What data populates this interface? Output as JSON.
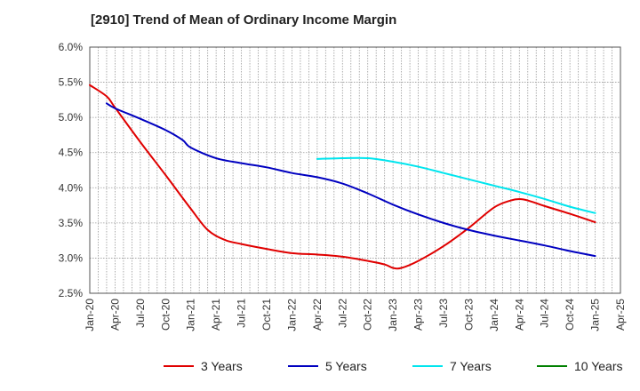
{
  "chart_data": {
    "type": "line",
    "title": "[2910]  Trend of Mean of Ordinary Income Margin",
    "x_tick_labels": [
      "Jan-20",
      "Apr-20",
      "Jul-20",
      "Oct-20",
      "Jan-21",
      "Apr-21",
      "Jul-21",
      "Oct-21",
      "Jan-22",
      "Apr-22",
      "Jul-22",
      "Oct-22",
      "Jan-23",
      "Apr-23",
      "Jul-23",
      "Oct-23",
      "Jan-24",
      "Apr-24",
      "Jul-24",
      "Oct-24",
      "Jan-25",
      "Apr-25"
    ],
    "y_tick_labels": [
      "6.0%",
      "5.5%",
      "5.0%",
      "4.5%",
      "4.0%",
      "3.5%",
      "3.0%",
      "2.5%"
    ],
    "ylim": [
      2.5,
      6.0
    ],
    "grid": true,
    "legend_position": "bottom",
    "series": [
      {
        "name": "3 Years",
        "color": "#e00000",
        "x": [
          "Jan-20",
          "Mar-20",
          "Apr-20",
          "Jul-20",
          "Oct-20",
          "Jan-21",
          "Mar-21",
          "May-21",
          "Jul-21",
          "Oct-21",
          "Jan-22",
          "Apr-22",
          "Jul-22",
          "Oct-22",
          "Dec-22",
          "Jan-23",
          "Feb-23",
          "Apr-23",
          "Jul-23",
          "Oct-23",
          "Jan-24",
          "Mar-24",
          "Apr-24",
          "May-24",
          "Jul-24",
          "Oct-24",
          "Jan-25"
        ],
        "values": [
          5.46,
          5.3,
          5.14,
          4.65,
          4.18,
          3.7,
          3.4,
          3.26,
          3.2,
          3.13,
          3.07,
          3.05,
          3.02,
          2.96,
          2.91,
          2.86,
          2.86,
          2.96,
          3.17,
          3.43,
          3.72,
          3.82,
          3.84,
          3.82,
          3.74,
          3.63,
          3.51
        ]
      },
      {
        "name": "5 Years",
        "color": "#0000c0",
        "x": [
          "Mar-20",
          "Apr-20",
          "Jul-20",
          "Oct-20",
          "Dec-20",
          "Jan-21",
          "Apr-21",
          "Jul-21",
          "Oct-21",
          "Jan-22",
          "Apr-22",
          "Jul-22",
          "Oct-22",
          "Jan-23",
          "Apr-23",
          "Jul-23",
          "Oct-23",
          "Jan-24",
          "Apr-24",
          "Jul-24",
          "Oct-24",
          "Jan-25"
        ],
        "values": [
          5.2,
          5.13,
          4.98,
          4.82,
          4.68,
          4.57,
          4.42,
          4.35,
          4.29,
          4.21,
          4.15,
          4.06,
          3.92,
          3.76,
          3.62,
          3.5,
          3.4,
          3.32,
          3.25,
          3.18,
          3.1,
          3.03
        ]
      },
      {
        "name": "7 Years",
        "color": "#00e5ee",
        "x": [
          "Apr-22",
          "Jul-22",
          "Oct-22",
          "Jan-23",
          "Apr-23",
          "Jul-23",
          "Oct-23",
          "Jan-24",
          "Apr-24",
          "Jul-24",
          "Oct-24",
          "Jan-25"
        ],
        "values": [
          4.41,
          4.42,
          4.42,
          4.37,
          4.3,
          4.21,
          4.12,
          4.03,
          3.94,
          3.84,
          3.73,
          3.64
        ]
      },
      {
        "name": "10 Years",
        "color": "#008000",
        "x": [],
        "values": []
      }
    ]
  }
}
